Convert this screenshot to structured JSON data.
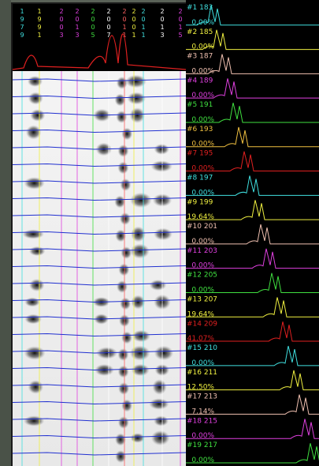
{
  "header": {
    "columns": [
      {
        "text": "1979",
        "color": "#40e0e0"
      },
      {
        "text": "1991",
        "color": "#f0f040"
      },
      {
        "text": "2003",
        "color": "#e040e0"
      },
      {
        "text": "2013",
        "color": "#e040e0"
      },
      {
        "text": "2005",
        "color": "#40e040"
      },
      {
        "text": "2007",
        "color": "#ffffff"
      },
      {
        "text": "2011",
        "color": "#ff6060"
      },
      {
        "text": "2001",
        "color": "#f0f040"
      },
      {
        "text": "2011",
        "color": "#40e0e0"
      },
      {
        "text": "2013",
        "color": "#ffffff"
      },
      {
        "text": "2015",
        "color": "#e040e0"
      }
    ]
  },
  "entries": [
    {
      "label": "#1  183",
      "percent": "0.00%",
      "color": "#40e0e0"
    },
    {
      "label": "#2  185",
      "percent": "0.00%",
      "color": "#f0f040"
    },
    {
      "label": "#3  187",
      "percent": "0.00%",
      "color": "#f0c0b0"
    },
    {
      "label": "#4  189",
      "percent": "0.00%",
      "color": "#e040e0"
    },
    {
      "label": "#5  191",
      "percent": "0.00%",
      "color": "#40e040"
    },
    {
      "label": "#6  193",
      "percent": "0.00%",
      "color": "#f0c040"
    },
    {
      "label": "#7  195",
      "percent": "0.00%",
      "color": "#e02020"
    },
    {
      "label": "#8  197",
      "percent": "0.00%",
      "color": "#40e0e0"
    },
    {
      "label": "#9  199",
      "percent": "19.64%",
      "color": "#f0f040"
    },
    {
      "label": "#10 201",
      "percent": "0.00%",
      "color": "#f0c0b0"
    },
    {
      "label": "#11 203",
      "percent": "0.00%",
      "color": "#e040e0"
    },
    {
      "label": "#12 205",
      "percent": "0.00%",
      "color": "#40e040"
    },
    {
      "label": "#13 207",
      "percent": "19.64%",
      "color": "#f0f040"
    },
    {
      "label": "#14 209",
      "percent": "41.07%",
      "color": "#e02020"
    },
    {
      "label": "#15 210",
      "percent": "0.00%",
      "color": "#40e0e0"
    },
    {
      "label": "#16 211",
      "percent": "12.50%",
      "color": "#f0f040"
    },
    {
      "label": "#17 213",
      "percent": "7.14%",
      "color": "#f0c0b0"
    },
    {
      "label": "#18 215",
      "percent": "0.00%",
      "color": "#e040e0"
    },
    {
      "label": "#19 217",
      "percent": "0.00%",
      "color": "#40e040"
    }
  ]
}
